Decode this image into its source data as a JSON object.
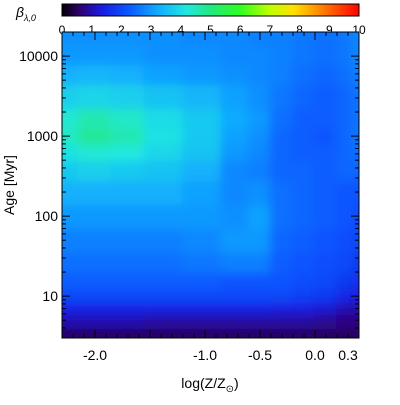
{
  "chart_data": {
    "type": "heatmap",
    "colorbar": {
      "label_symbol": "β",
      "label_subscript": "λ,0",
      "range": [
        0,
        10
      ],
      "ticks": [
        "0",
        "1",
        "2",
        "3",
        "4",
        "5",
        "6",
        "7",
        "8",
        "9",
        "10"
      ],
      "colormap": "rainbow"
    },
    "xlabel": "log(Z/Z",
    "xlabel_suffix": ")",
    "xlabel_sub_symbol": "⊙",
    "ylabel": "Age [Myr]",
    "x_range": [
      -2.3,
      0.4
    ],
    "y_range_myr": [
      3,
      20000
    ],
    "y_scale": "log",
    "xticks": [
      {
        "value": -2.0,
        "label": "-2.0"
      },
      {
        "value": -1.0,
        "label": "-1.0"
      },
      {
        "value": -0.5,
        "label": "-0.5"
      },
      {
        "value": 0.0,
        "label": "0.0"
      },
      {
        "value": 0.3,
        "label": "0.3"
      }
    ],
    "yticks": [
      {
        "value": 10,
        "label": "10"
      },
      {
        "value": 100,
        "label": "100"
      },
      {
        "value": 1000,
        "label": "1000"
      },
      {
        "value": 10000,
        "label": "10000"
      }
    ],
    "log_age_grid": [
      0.5,
      0.7,
      0.85,
      1.0,
      1.2,
      1.4,
      1.7,
      2.0,
      2.3,
      2.6,
      2.8,
      3.0,
      3.2,
      3.5,
      3.8,
      4.0,
      4.3
    ],
    "logZ_grid": [
      -2.3,
      -2.0,
      -1.7,
      -1.4,
      -1.0,
      -0.7,
      -0.5,
      -0.3,
      -0.1,
      0.1,
      0.3,
      0.4
    ],
    "values": [
      [
        0.5,
        0.5,
        0.5,
        0.5,
        0.5,
        0.5,
        0.5,
        0.5,
        0.5,
        0.5,
        0.5,
        0.5
      ],
      [
        1.0,
        1.0,
        1.0,
        0.9,
        0.9,
        0.9,
        0.9,
        0.9,
        0.9,
        0.8,
        0.7,
        0.7
      ],
      [
        1.4,
        1.4,
        1.4,
        1.4,
        1.4,
        1.4,
        1.4,
        1.3,
        1.3,
        1.2,
        1.0,
        0.9
      ],
      [
        2.0,
        2.0,
        2.0,
        2.0,
        2.0,
        2.0,
        2.0,
        2.0,
        1.9,
        1.8,
        1.5,
        1.3
      ],
      [
        2.3,
        2.3,
        2.3,
        2.3,
        2.3,
        2.2,
        2.2,
        2.2,
        2.1,
        2.0,
        1.8,
        1.6
      ],
      [
        2.5,
        2.5,
        2.5,
        2.5,
        2.6,
        2.7,
        2.7,
        2.3,
        2.2,
        2.1,
        2.0,
        1.8
      ],
      [
        2.7,
        2.7,
        2.7,
        2.7,
        2.8,
        3.0,
        3.0,
        2.4,
        2.3,
        2.2,
        2.1,
        2.0
      ],
      [
        3.0,
        3.0,
        3.0,
        3.0,
        3.0,
        2.9,
        3.1,
        2.5,
        2.4,
        2.3,
        2.2,
        2.1
      ],
      [
        3.3,
        3.3,
        3.3,
        3.3,
        3.1,
        2.8,
        2.9,
        2.5,
        2.4,
        2.3,
        2.2,
        2.2
      ],
      [
        3.7,
        3.8,
        3.7,
        3.6,
        3.3,
        2.8,
        2.7,
        2.4,
        2.4,
        2.3,
        2.4,
        2.4
      ],
      [
        4.1,
        4.3,
        4.2,
        3.9,
        3.6,
        3.0,
        2.8,
        2.4,
        2.3,
        2.3,
        2.4,
        2.5
      ],
      [
        4.4,
        4.8,
        4.6,
        4.1,
        3.7,
        3.1,
        2.9,
        2.4,
        2.3,
        2.2,
        2.4,
        2.6
      ],
      [
        4.3,
        4.6,
        4.4,
        4.0,
        3.7,
        3.2,
        3.0,
        2.5,
        2.3,
        2.3,
        2.4,
        2.6
      ],
      [
        3.8,
        3.9,
        3.8,
        3.6,
        3.4,
        3.1,
        2.9,
        2.6,
        2.4,
        2.3,
        2.4,
        2.6
      ],
      [
        3.3,
        3.4,
        3.3,
        3.1,
        3.0,
        2.9,
        2.8,
        2.7,
        2.5,
        2.4,
        2.5,
        2.7
      ],
      [
        3.0,
        3.0,
        3.0,
        2.9,
        2.9,
        2.8,
        2.8,
        2.7,
        2.6,
        2.5,
        2.6,
        2.8
      ],
      [
        2.9,
        2.9,
        2.9,
        2.9,
        2.8,
        2.8,
        2.7,
        2.7,
        2.6,
        2.5,
        2.6,
        2.8
      ]
    ]
  }
}
